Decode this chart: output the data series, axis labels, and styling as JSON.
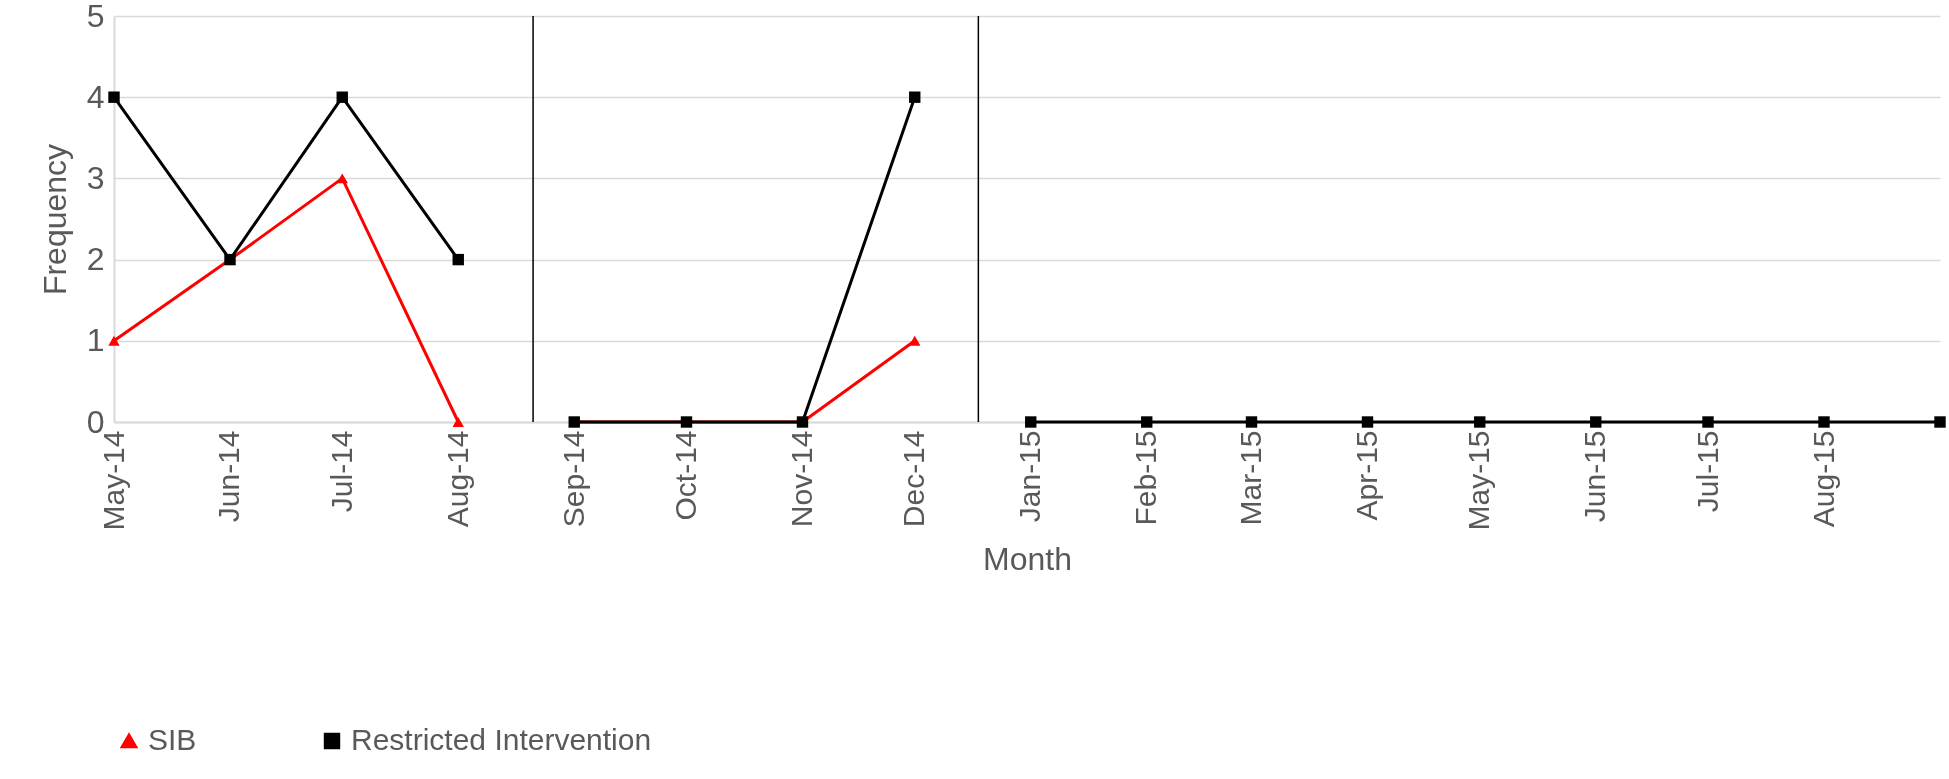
{
  "chart_data": {
    "type": "line",
    "xlabel": "Month",
    "ylabel": "Frequency",
    "ylim": [
      0,
      5
    ],
    "yticks": [
      0,
      1,
      2,
      3,
      4,
      5
    ],
    "xlim": [
      "2014-05",
      "2015-09"
    ],
    "xticks": [
      {
        "value": "2014-05",
        "label": "May-14"
      },
      {
        "value": "2014-06",
        "label": "Jun-14"
      },
      {
        "value": "2014-07",
        "label": "Jul-14"
      },
      {
        "value": "2014-08",
        "label": "Aug-14"
      },
      {
        "value": "2014-09",
        "label": "Sep-14"
      },
      {
        "value": "2014-10",
        "label": "Oct-14"
      },
      {
        "value": "2014-11",
        "label": "Nov-14"
      },
      {
        "value": "2014-12",
        "label": "Dec-14"
      },
      {
        "value": "2015-01",
        "label": "Jan-15"
      },
      {
        "value": "2015-02",
        "label": "Feb-15"
      },
      {
        "value": "2015-03",
        "label": "Mar-15"
      },
      {
        "value": "2015-04",
        "label": "Apr-15"
      },
      {
        "value": "2015-05",
        "label": "May-15"
      },
      {
        "value": "2015-06",
        "label": "Jun-15"
      },
      {
        "value": "2015-07",
        "label": "Jul-15"
      },
      {
        "value": "2015-08",
        "label": "Aug-15"
      }
    ],
    "grid": "y",
    "legend": "bottom",
    "line_style": "solid",
    "series": [
      {
        "name": "SIB",
        "color": "#ff0000",
        "marker": "triangle",
        "x": [
          "2014-05",
          "2014-06",
          "2014-07",
          "2014-08"
        ],
        "values": [
          1,
          2,
          3,
          0
        ]
      },
      {
        "color": "#ff0000",
        "marker": "triangle",
        "x": [
          "2014-09",
          "2014-10",
          "2014-11",
          "2014-12"
        ],
        "values": [
          0,
          0,
          0,
          1
        ]
      },
      {
        "name": "Restricted Intervention",
        "color": "#000000",
        "marker": "square",
        "x": [
          "2014-05",
          "2014-06",
          "2014-07",
          "2014-08"
        ],
        "values": [
          4,
          2,
          4,
          2
        ]
      },
      {
        "color": "#000000",
        "marker": "square",
        "x": [
          "2014-09",
          "2014-10",
          "2014-11",
          "2014-12"
        ],
        "values": [
          0,
          0,
          0,
          4
        ]
      },
      {
        "color": "#000000",
        "marker": "square",
        "x": [
          "2015-01",
          "2015-02",
          "2015-03",
          "2015-04",
          "2015-05",
          "2015-06",
          "2015-07",
          "2015-08",
          "2015-09"
        ],
        "values": [
          0,
          0,
          0,
          0,
          0,
          0,
          0,
          0,
          0
        ]
      }
    ],
    "ref_lines": [
      {
        "axis": "x",
        "value": "2014-08-21",
        "color": "#000000"
      },
      {
        "axis": "x",
        "value": "2014-12-18",
        "color": "#000000"
      }
    ]
  }
}
